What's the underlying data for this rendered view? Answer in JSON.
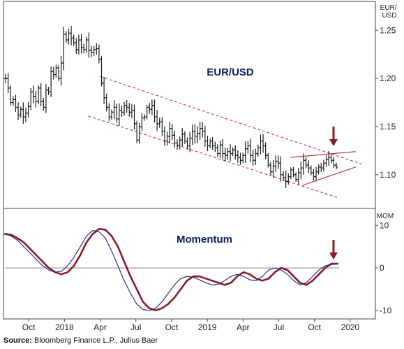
{
  "chart_data": [
    {
      "type": "ohlc",
      "title": "EUR/USD",
      "y_axis_label": "EUR/ USD",
      "ylim": [
        1.065,
        1.28
      ],
      "yticks": [
        1.1,
        1.15,
        1.2,
        1.25
      ],
      "ytick_labels": [
        "1.10",
        "1.15",
        "1.20",
        "1.25"
      ],
      "grid": false,
      "series": [
        {
          "weekly_close": [
            1.2,
            1.19,
            1.175,
            1.178,
            1.17,
            1.162,
            1.168,
            1.16,
            1.164,
            1.171,
            1.186,
            1.181,
            1.176,
            1.19,
            1.176,
            1.17,
            1.188,
            1.186,
            1.207,
            1.204,
            1.211,
            1.2,
            1.216,
            1.246,
            1.24,
            1.247,
            1.242,
            1.237,
            1.23,
            1.24,
            1.232,
            1.23,
            1.24,
            1.229,
            1.227,
            1.23,
            1.231,
            1.22,
            1.195,
            1.18,
            1.17,
            1.16,
            1.165,
            1.17,
            1.158,
            1.167,
            1.165,
            1.172,
            1.17,
            1.165,
            1.167,
            1.153,
            1.136,
            1.15,
            1.159,
            1.16,
            1.17,
            1.168,
            1.172,
            1.16,
            1.153,
            1.155,
            1.145,
            1.135,
            1.14,
            1.148,
            1.141,
            1.133,
            1.13,
            1.136,
            1.142,
            1.135,
            1.13,
            1.138,
            1.145,
            1.14,
            1.143,
            1.148,
            1.145,
            1.135,
            1.13,
            1.135,
            1.13,
            1.128,
            1.122,
            1.131,
            1.122,
            1.12,
            1.124,
            1.122,
            1.126,
            1.12,
            1.118,
            1.115,
            1.12,
            1.127,
            1.13,
            1.12,
            1.115,
            1.122,
            1.128,
            1.135,
            1.13,
            1.12,
            1.11,
            1.103,
            1.109,
            1.114,
            1.112,
            1.1,
            1.097,
            1.093,
            1.098,
            1.105,
            1.1,
            1.095,
            1.102,
            1.107,
            1.115,
            1.11,
            1.107,
            1.102,
            1.098,
            1.103,
            1.108,
            1.107,
            1.112,
            1.116,
            1.118,
            1.115,
            1.11,
            1.108
          ],
          "color": "#1a1a1a"
        }
      ],
      "channel_lines": [
        {
          "start": [
            "2018-04",
            1.202
          ],
          "end": [
            "2020-02",
            1.111
          ]
        },
        {
          "start": [
            "2018-03",
            1.161
          ],
          "end": [
            "2019-12",
            1.076
          ]
        }
      ],
      "triangle": {
        "top": [
          [
            "2019-08",
            1.118
          ],
          [
            "2020-01",
            1.124
          ]
        ],
        "bottom": [
          [
            "2019-09",
            1.089
          ],
          [
            "2020-01",
            1.108
          ]
        ]
      },
      "arrow": {
        "position": "above last bar",
        "color": "#8b1a2a"
      }
    },
    {
      "type": "line",
      "title": "Momentum",
      "y_axis_label": "MOM",
      "ylim": [
        -12,
        14
      ],
      "yticks": [
        -10,
        0,
        10
      ],
      "ytick_labels": [
        "-10",
        "0",
        "10"
      ],
      "zero_line": true,
      "series": [
        {
          "style": "thick",
          "color": "#8b1a2a",
          "values": [
            8.0,
            7.8,
            7.0,
            6.0,
            4.5,
            3.0,
            1.5,
            0.0,
            -1.0,
            -1.5,
            -1.0,
            0.5,
            3.0,
            6.0,
            8.0,
            9.2,
            9.0,
            7.5,
            5.0,
            1.5,
            -2.0,
            -5.0,
            -8.0,
            -9.5,
            -10.0,
            -9.5,
            -8.5,
            -7.0,
            -5.0,
            -3.0,
            -2.0,
            -2.0,
            -2.5,
            -3.0,
            -3.5,
            -4.0,
            -3.5,
            -2.0,
            -1.0,
            -1.5,
            -2.5,
            -3.0,
            -2.5,
            -1.0,
            0.0,
            -0.5,
            -2.0,
            -3.5,
            -4.0,
            -3.0,
            -1.5,
            0.0,
            1.0,
            1.0
          ]
        },
        {
          "style": "thin",
          "color": "#1a237e",
          "values": [
            8.0,
            7.5,
            6.5,
            5.0,
            3.5,
            2.0,
            0.5,
            -0.5,
            -1.0,
            -0.8,
            0.5,
            2.5,
            5.0,
            7.5,
            8.8,
            8.5,
            7.0,
            4.0,
            0.5,
            -3.0,
            -6.0,
            -8.5,
            -9.8,
            -10.0,
            -9.5,
            -8.0,
            -6.0,
            -4.0,
            -2.5,
            -2.0,
            -2.2,
            -2.8,
            -3.5,
            -4.0,
            -3.8,
            -3.0,
            -2.0,
            -1.5,
            -2.0,
            -2.8,
            -3.0,
            -2.0,
            -0.5,
            0.0,
            -0.5,
            -1.5,
            -3.0,
            -4.0,
            -3.5,
            -2.0,
            -0.5,
            0.5,
            0.8,
            0.9
          ]
        }
      ],
      "arrow": {
        "position": "above last point",
        "color": "#8b1a2a"
      }
    }
  ],
  "x_axis": {
    "tick_labels": [
      "Oct",
      "2018",
      "Apr",
      "Jul",
      "Oct",
      "2019",
      "Apr",
      "Jul",
      "Oct",
      "2020"
    ]
  },
  "source": {
    "label": "Source:",
    "text": " Bloomberg Finance L.P., Julius Baer"
  },
  "colors": {
    "price_bars": "#1a1a1a",
    "channel": "#b02535",
    "momentum_thick": "#8b1a2a",
    "momentum_thin": "#1a237e",
    "titles": "#0d1b5e",
    "arrow": "#8b1a2a"
  }
}
